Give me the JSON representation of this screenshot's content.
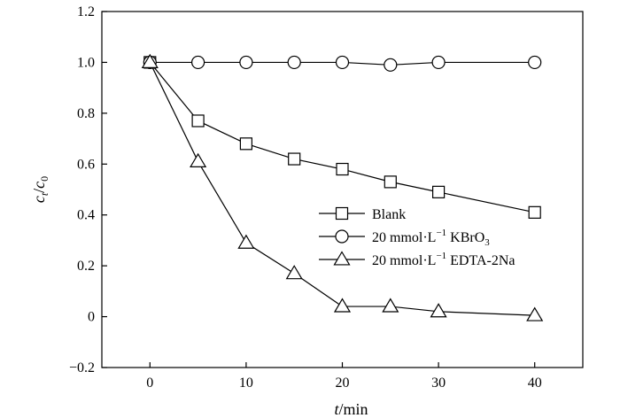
{
  "chart_data": {
    "type": "line",
    "xlabel": {
      "italic": "t",
      "rest": "/min"
    },
    "ylabel": {
      "c1": "c",
      "s1": "t",
      "slash": "/",
      "c2": "c",
      "s2": "0"
    },
    "xlim": [
      -5,
      45
    ],
    "ylim": [
      -0.2,
      1.2
    ],
    "xticks": [
      0,
      10,
      20,
      30,
      40
    ],
    "xtick_labels": [
      "0",
      "10",
      "20",
      "30",
      "40"
    ],
    "yticks": [
      -0.2,
      0,
      0.2,
      0.4,
      0.6,
      0.8,
      1.0,
      1.2
    ],
    "ytick_labels": [
      "−0.2",
      "0",
      "0.2",
      "0.4",
      "0.6",
      "0.8",
      "1.0",
      "1.2"
    ],
    "grid": false,
    "legend_position": "center-right",
    "series": [
      {
        "name": "Blank",
        "legend_parts": {
          "prefix": "Blank",
          "sup": "",
          "mid": "",
          "sub": "",
          "suffix": ""
        },
        "marker": "square",
        "x": [
          0,
          5,
          10,
          15,
          20,
          25,
          30,
          40
        ],
        "y": [
          1.0,
          0.77,
          0.68,
          0.62,
          0.58,
          0.53,
          0.49,
          0.41
        ]
      },
      {
        "name": "20 mmol·L−1 KBrO3",
        "legend_parts": {
          "prefix": "20 mmol·L",
          "sup": "−1",
          "mid": " KBrO",
          "sub": "3",
          "suffix": ""
        },
        "marker": "circle",
        "x": [
          0,
          5,
          10,
          15,
          20,
          25,
          30,
          40
        ],
        "y": [
          1.0,
          1.0,
          1.0,
          1.0,
          1.0,
          0.99,
          1.0,
          1.0
        ]
      },
      {
        "name": "20 mmol·L−1 EDTA-2Na",
        "legend_parts": {
          "prefix": "20 mmol·L",
          "sup": "−1",
          "mid": " EDTA-2Na",
          "sub": "",
          "suffix": ""
        },
        "marker": "triangle",
        "x": [
          0,
          5,
          10,
          15,
          20,
          25,
          30,
          40
        ],
        "y": [
          1.0,
          0.61,
          0.29,
          0.17,
          0.04,
          0.04,
          0.02,
          0.005
        ]
      }
    ]
  }
}
